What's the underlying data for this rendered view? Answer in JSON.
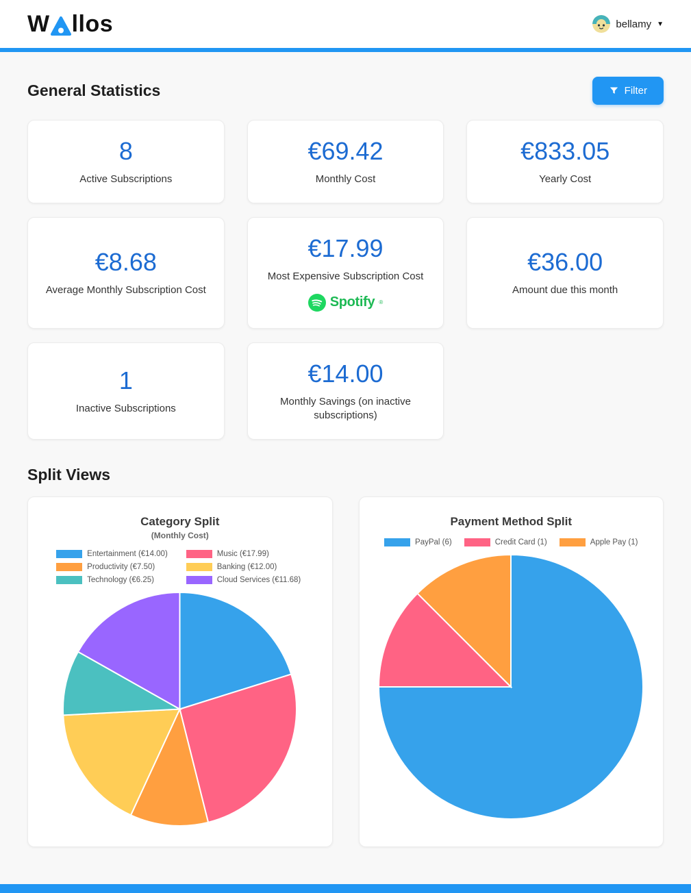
{
  "colors": {
    "accent": "#2196f3",
    "stat_value": "#1c6bd2",
    "spotify_green": "#1db954",
    "chart_palette": [
      "#36a2eb",
      "#ff6384",
      "#ff9f40",
      "#ffcd56",
      "#4bc0c0",
      "#9966ff"
    ]
  },
  "header": {
    "logo_prefix": "W",
    "logo_suffix": "llos",
    "user": {
      "name": "bellamy"
    }
  },
  "general_statistics": {
    "title": "General Statistics",
    "filter_label": "Filter",
    "cards": [
      {
        "value": "8",
        "label": "Active Subscriptions"
      },
      {
        "value": "€69.42",
        "label": "Monthly Cost"
      },
      {
        "value": "€833.05",
        "label": "Yearly Cost"
      },
      {
        "value": "€8.68",
        "label": "Average Monthly Subscription Cost"
      },
      {
        "value": "€17.99",
        "label": "Most Expensive Subscription Cost",
        "logo": "spotify-icon",
        "logo_text": "Spotify",
        "logo_mark": "®"
      },
      {
        "value": "€36.00",
        "label": "Amount due this month"
      },
      {
        "value": "1",
        "label": "Inactive Subscriptions"
      },
      {
        "value": "€14.00",
        "label": "Monthly Savings (on inactive subscriptions)"
      }
    ]
  },
  "split_views": {
    "title": "Split Views"
  },
  "chart_data": [
    {
      "type": "pie",
      "title": "Category Split",
      "subtitle": "(Monthly Cost)",
      "labels": [
        "Entertainment (€14.00)",
        "Music (€17.99)",
        "Productivity (€7.50)",
        "Banking (€12.00)",
        "Technology (€6.25)",
        "Cloud Services (€11.68)"
      ],
      "values": [
        14.0,
        17.99,
        7.5,
        12.0,
        6.25,
        11.68
      ],
      "colors": [
        "#36a2eb",
        "#ff6384",
        "#ff9f40",
        "#ffcd56",
        "#4bc0c0",
        "#9966ff"
      ],
      "legend_position": "top"
    },
    {
      "type": "pie",
      "title": "Payment Method Split",
      "labels": [
        "PayPal (6)",
        "Credit Card (1)",
        "Apple Pay (1)"
      ],
      "values": [
        6,
        1,
        1
      ],
      "colors": [
        "#36a2eb",
        "#ff6384",
        "#ff9f40"
      ],
      "legend_position": "top"
    }
  ]
}
